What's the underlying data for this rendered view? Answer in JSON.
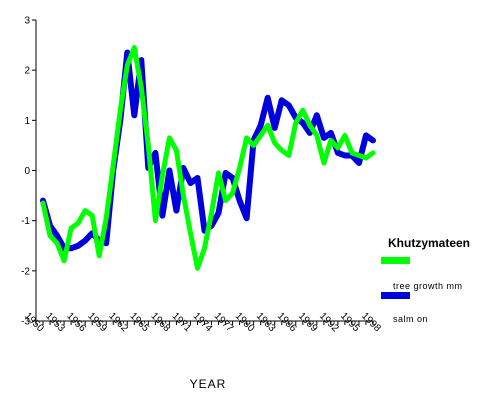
{
  "chart_data": {
    "type": "line",
    "title": "",
    "xlabel": "YEAR",
    "ylabel": "",
    "xlim": [
      1950,
      1998
    ],
    "ylim": [
      -3,
      3
    ],
    "x_ticks": [
      "1950",
      "1953",
      "1956",
      "1959",
      "1962",
      "1965",
      "1968",
      "1971",
      "1974",
      "1977",
      "1980",
      "1983",
      "1986",
      "1989",
      "1992",
      "1995",
      "1998"
    ],
    "y_ticks": [
      "-3",
      "-2",
      "-1",
      "0",
      "1",
      "2",
      "3"
    ],
    "grid": false,
    "legend": {
      "title": "Khutzymateen",
      "placement": "right",
      "entries": [
        "tree growth mm",
        "salm on"
      ]
    },
    "x": [
      1951,
      1952,
      1953,
      1954,
      1955,
      1956,
      1957,
      1958,
      1959,
      1960,
      1961,
      1962,
      1963,
      1964,
      1965,
      1966,
      1967,
      1968,
      1969,
      1970,
      1971,
      1972,
      1973,
      1974,
      1975,
      1976,
      1977,
      1978,
      1979,
      1980,
      1981,
      1982,
      1983,
      1984,
      1985,
      1986,
      1987,
      1988,
      1989,
      1990,
      1991,
      1992,
      1993,
      1994,
      1995,
      1996,
      1997,
      1998
    ],
    "series": [
      {
        "name": "tree growth mm",
        "color": "#00ff00",
        "values": [
          -0.65,
          -1.3,
          -1.45,
          -1.8,
          -1.15,
          -1.05,
          -0.8,
          -0.9,
          -1.7,
          -0.95,
          0.1,
          1.2,
          2.1,
          2.45,
          1.65,
          0.5,
          -1.0,
          -0.1,
          0.65,
          0.4,
          -0.5,
          -1.25,
          -1.95,
          -1.55,
          -0.85,
          -0.05,
          -0.6,
          -0.45,
          0.05,
          0.65,
          0.5,
          0.7,
          0.9,
          0.55,
          0.4,
          0.3,
          0.95,
          1.2,
          0.9,
          0.7,
          0.15,
          0.6,
          0.45,
          0.7,
          0.35,
          0.3,
          0.25,
          0.35
        ]
      },
      {
        "name": "salm on",
        "color": "#0000dd",
        "values": [
          -0.6,
          -1.1,
          -1.3,
          -1.55,
          -1.55,
          -1.5,
          -1.4,
          -1.25,
          -1.4,
          -1.45,
          0.0,
          1.0,
          2.35,
          1.1,
          2.2,
          0.05,
          0.35,
          -0.9,
          0.0,
          -0.8,
          0.05,
          -0.25,
          -0.15,
          -1.2,
          -1.1,
          -0.85,
          -0.05,
          -0.15,
          -0.6,
          -0.95,
          0.6,
          0.9,
          1.45,
          0.85,
          1.4,
          1.3,
          1.05,
          0.95,
          0.75,
          1.1,
          0.65,
          0.75,
          0.35,
          0.3,
          0.3,
          0.15,
          0.7,
          0.6
        ]
      }
    ]
  }
}
